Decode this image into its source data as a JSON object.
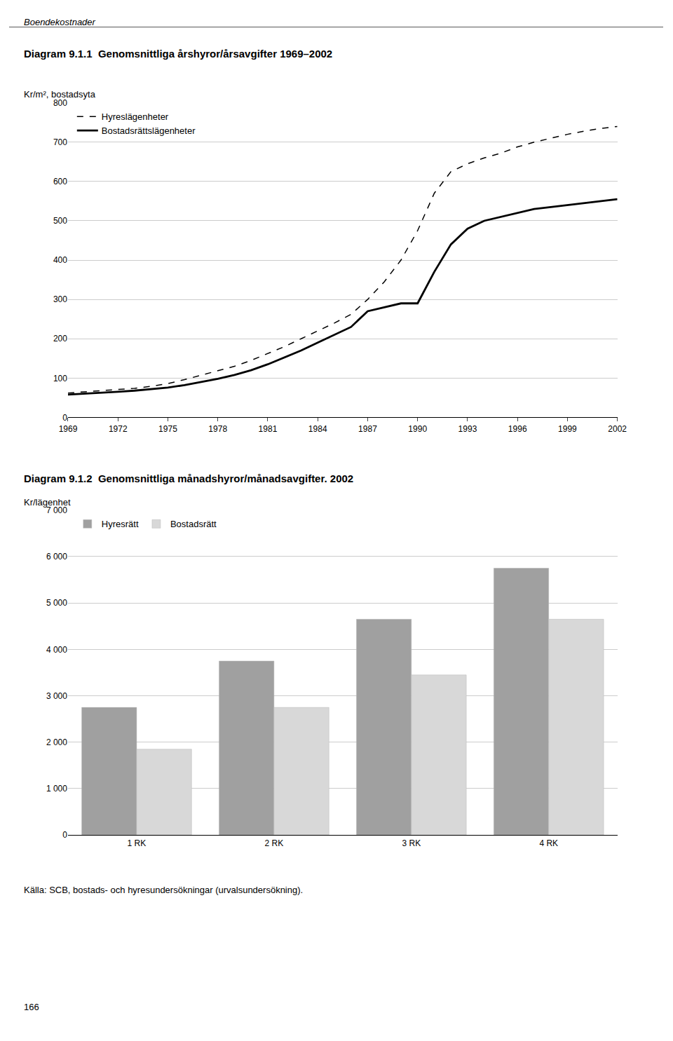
{
  "chart_data": [
    {
      "type": "line",
      "title": "Diagram 9.1.1  Genomsnittliga årshyror/årsavgifter 1969–2002",
      "ylabel": "Kr/m², bostadsyta",
      "x": [
        1969,
        1970,
        1971,
        1972,
        1973,
        1974,
        1975,
        1976,
        1977,
        1978,
        1979,
        1980,
        1981,
        1982,
        1983,
        1984,
        1985,
        1986,
        1987,
        1988,
        1989,
        1990,
        1991,
        1992,
        1993,
        1994,
        1995,
        1996,
        1997,
        1998,
        1999,
        2000,
        2001,
        2002
      ],
      "series": [
        {
          "name": "Hyreslägenheter",
          "color": "#000000",
          "line_style": "dashed",
          "values": [
            62,
            65,
            67,
            70,
            74,
            79,
            86,
            96,
            107,
            118,
            130,
            145,
            162,
            180,
            200,
            220,
            240,
            262,
            300,
            345,
            400,
            475,
            570,
            625,
            645,
            660,
            672,
            688,
            700,
            710,
            720,
            728,
            735,
            740
          ]
        },
        {
          "name": "Bostadsrättslägenheter",
          "color": "#000000",
          "line_style": "solid",
          "values": [
            58,
            60,
            62,
            65,
            68,
            72,
            76,
            82,
            90,
            98,
            108,
            120,
            135,
            152,
            170,
            190,
            210,
            230,
            270,
            280,
            290,
            290,
            370,
            440,
            480,
            500,
            510,
            520,
            530,
            535,
            540,
            545,
            550,
            555
          ]
        }
      ],
      "xlim": [
        1969,
        2002
      ],
      "xticks": [
        1969,
        1972,
        1975,
        1978,
        1981,
        1984,
        1987,
        1990,
        1993,
        1996,
        1999,
        2002
      ],
      "ylim": [
        0,
        800
      ],
      "yticks": [
        0,
        100,
        200,
        300,
        400,
        500,
        600,
        700,
        800
      ],
      "grid": true,
      "legend": "upper left",
      "annotations": [
        "Boendekostnader"
      ]
    },
    {
      "type": "bar",
      "title": "Diagram 9.1.2  Genomsnittliga månadshyror/månadsavgifter. 2002",
      "ylabel": "Kr/lägenhet",
      "categories": [
        "1 RK",
        "2 RK",
        "3 RK",
        "4 RK"
      ],
      "series": [
        {
          "name": "Hyresrätt",
          "color": "#a0a0a0",
          "values": [
            2750,
            3750,
            4650,
            5750
          ]
        },
        {
          "name": "Bostadsrätt",
          "color": "#d8d8d8",
          "values": [
            1850,
            2750,
            3450,
            4650
          ]
        }
      ],
      "ylim": [
        0,
        7000
      ],
      "yticks": [
        0,
        {
          "value": 1000,
          "label": "1 000"
        },
        {
          "value": 2000,
          "label": "2 000"
        },
        {
          "value": 3000,
          "label": "3 000"
        },
        {
          "value": 4000,
          "label": "4 000"
        },
        {
          "value": 5000,
          "label": "5 000"
        },
        {
          "value": 6000,
          "label": "6 000"
        },
        {
          "value": 7000,
          "label": "7 000"
        }
      ],
      "grid": true,
      "legend": "upper left",
      "annotations": [
        "Källa: SCB, bostads- och hyresundersökningar (urvalsundersökning).",
        "166"
      ]
    }
  ]
}
